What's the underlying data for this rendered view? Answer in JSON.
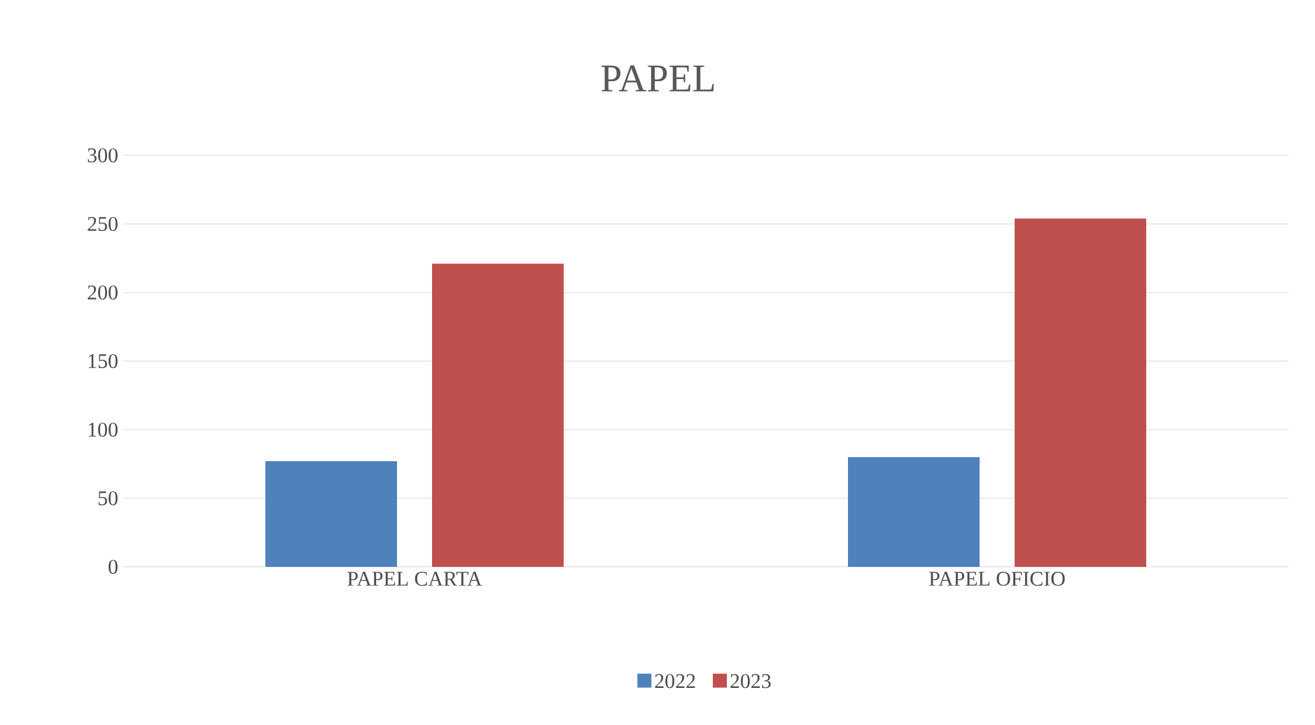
{
  "chart_data": {
    "type": "bar",
    "title": "PAPEL",
    "categories": [
      "PAPEL CARTA",
      "PAPEL OFICIO"
    ],
    "series": [
      {
        "name": "2022",
        "color": "#4f81bd",
        "values": [
          77,
          80
        ]
      },
      {
        "name": "2023",
        "color": "#c0504d",
        "values": [
          221,
          254
        ]
      }
    ],
    "ylim": [
      0,
      300
    ],
    "yticks": [
      0,
      50,
      100,
      150,
      200,
      250,
      300
    ],
    "grid": "y",
    "legend": "bottom"
  }
}
